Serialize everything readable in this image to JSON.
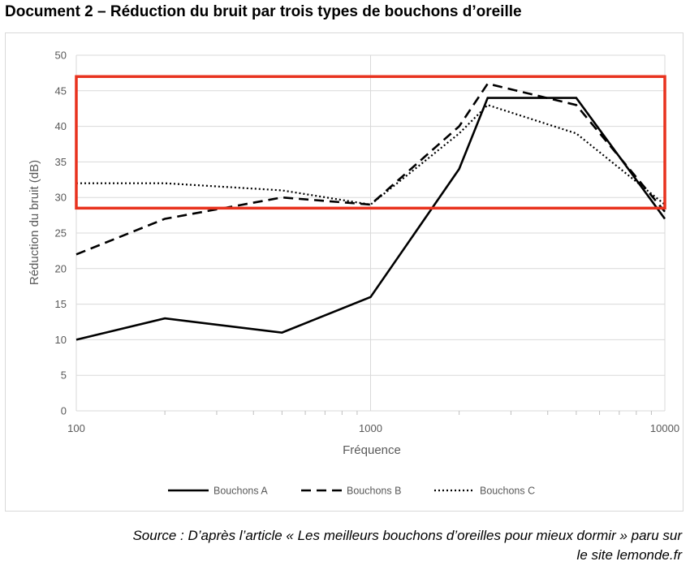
{
  "document": {
    "title": "Document 2 – Réduction du bruit par trois types de bouchons d’oreille",
    "source_line1": "Source : D’après l’article « Les meilleurs bouchons d’oreilles pour mieux dormir » paru sur",
    "source_line2": "le site lemonde.fr"
  },
  "chart_data": {
    "type": "line",
    "title": "",
    "xlabel": "Fréquence",
    "ylabel": "Réduction du bruit (dB)",
    "x_scale": "log",
    "xlim": [
      100,
      10000
    ],
    "ylim": [
      0,
      50
    ],
    "x_ticks": [
      "100",
      "1000",
      "10000"
    ],
    "y_ticks": [
      "0",
      "5",
      "10",
      "15",
      "20",
      "25",
      "30",
      "35",
      "40",
      "45",
      "50"
    ],
    "grid": "horizontal major lines and vertical decade lines",
    "legend_position": "bottom",
    "series": [
      {
        "name": "Bouchons A",
        "style": "solid",
        "x": [
          100,
          200,
          500,
          1000,
          2000,
          2500,
          5000,
          10000
        ],
        "y": [
          10,
          13,
          11,
          16,
          34,
          44,
          44,
          27
        ]
      },
      {
        "name": "Bouchons B",
        "style": "dashed",
        "x": [
          100,
          200,
          500,
          1000,
          2000,
          2500,
          5000,
          10000
        ],
        "y": [
          22,
          27,
          30,
          29,
          40,
          46,
          43,
          28
        ]
      },
      {
        "name": "Bouchons C",
        "style": "dotted",
        "x": [
          100,
          200,
          500,
          1000,
          2000,
          2500,
          5000,
          10000
        ],
        "y": [
          32,
          32,
          31,
          29,
          39,
          43,
          39,
          29
        ]
      }
    ],
    "annotation": {
      "shape": "rectangle",
      "color": "#e8321e",
      "y_from": 28.5,
      "y_to": 47
    }
  }
}
